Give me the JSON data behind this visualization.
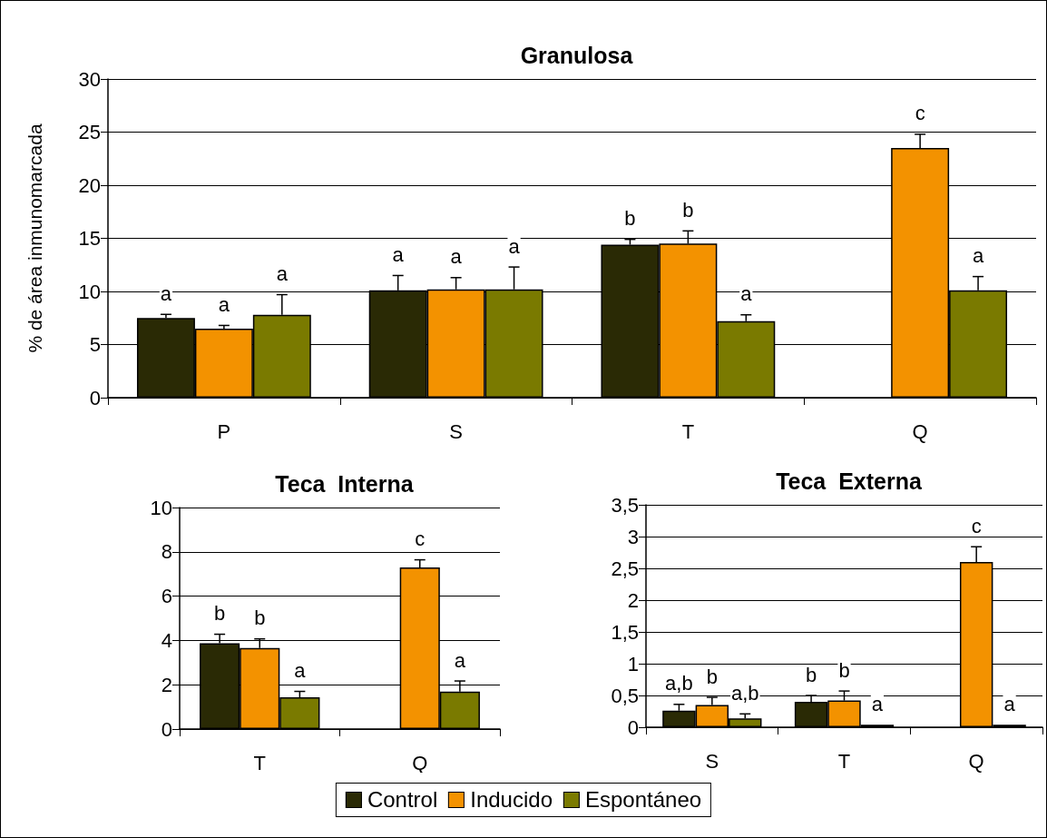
{
  "chart_data": [
    {
      "type": "bar",
      "title": "Granulosa",
      "ylabel": "% de área inmunomarcada",
      "categories": [
        "P",
        "S",
        "T",
        "Q"
      ],
      "ylim": [
        0,
        30
      ],
      "yticks": [
        0,
        5,
        10,
        15,
        20,
        25,
        30
      ],
      "grid": "y",
      "legend": "bottom",
      "series": [
        {
          "name": "Control",
          "color": "#2a2a05",
          "values": [
            7.5,
            10.1,
            14.4,
            null
          ],
          "errors": [
            [
              7.5,
              7.84
            ],
            [
              10.1,
              11.5
            ],
            [
              14.4,
              14.9
            ],
            null
          ],
          "value_labels": [
            "a",
            "a",
            "b",
            null
          ]
        },
        {
          "name": "Inducido",
          "color": "#f39200",
          "values": [
            6.5,
            10.2,
            14.5,
            23.5
          ],
          "errors": [
            [
              6.5,
              6.8
            ],
            [
              10.2,
              11.3
            ],
            [
              14.5,
              15.7
            ],
            [
              23.5,
              24.8
            ]
          ],
          "value_labels": [
            "a",
            "a",
            "b",
            "c"
          ]
        },
        {
          "name": "Espontáneo",
          "color": "#7a7a00",
          "values": [
            7.8,
            10.2,
            7.2,
            10.1
          ],
          "errors": [
            [
              7.8,
              9.7
            ],
            [
              10.2,
              12.3
            ],
            [
              7.2,
              7.8
            ],
            [
              10.1,
              11.4
            ]
          ],
          "value_labels": [
            "a",
            "a",
            "a",
            "a"
          ]
        }
      ]
    },
    {
      "type": "bar",
      "title": "Teca  Interna",
      "categories": [
        "T",
        "Q"
      ],
      "ylim": [
        0,
        10
      ],
      "yticks": [
        0,
        2,
        4,
        6,
        8,
        10
      ],
      "grid": "y",
      "series": [
        {
          "name": "Control",
          "color": "#2a2a05",
          "values": [
            3.87,
            null
          ],
          "errors": [
            [
              3.87,
              4.28
            ],
            null
          ],
          "value_labels": [
            "b",
            null
          ]
        },
        {
          "name": "Inducido",
          "color": "#f39200",
          "values": [
            3.66,
            7.3
          ],
          "errors": [
            [
              3.66,
              4.07
            ],
            [
              7.3,
              7.64
            ]
          ],
          "value_labels": [
            "b",
            "c"
          ]
        },
        {
          "name": "Espontáneo",
          "color": "#7a7a00",
          "values": [
            1.43,
            1.69
          ],
          "errors": [
            [
              1.43,
              1.7
            ],
            [
              1.69,
              2.17
            ]
          ],
          "value_labels": [
            "a",
            "a"
          ]
        }
      ]
    },
    {
      "type": "bar",
      "title": "Teca  Externa",
      "categories": [
        "S",
        "T",
        "Q"
      ],
      "ylim": [
        0,
        3.5
      ],
      "yticks": [
        0,
        {
          "value": 0.5,
          "label": "0,5"
        },
        1,
        {
          "value": 1.5,
          "label": "1,5"
        },
        2,
        {
          "value": 2.5,
          "label": "2,5"
        },
        3,
        {
          "value": 3.5,
          "label": "3,5"
        }
      ],
      "grid": "y",
      "series": [
        {
          "name": "Control",
          "color": "#2a2a05",
          "values": [
            0.26,
            0.4,
            null
          ],
          "errors": [
            [
              0.26,
              0.36
            ],
            [
              0.4,
              0.5
            ],
            null
          ],
          "value_labels": [
            "a,b",
            "b",
            null
          ]
        },
        {
          "name": "Inducido",
          "color": "#f39200",
          "values": [
            0.35,
            0.42,
            2.6
          ],
          "errors": [
            [
              0.35,
              0.47
            ],
            [
              0.42,
              0.57
            ],
            [
              2.6,
              2.84
            ]
          ],
          "value_labels": [
            "b",
            "b",
            "c"
          ]
        },
        {
          "name": "Espontáneo",
          "color": "#7a7a00",
          "values": [
            0.14,
            0.04,
            0.04
          ],
          "errors": [
            [
              0.14,
              0.21
            ],
            null,
            null
          ],
          "value_labels": [
            "a,b",
            "a",
            "a"
          ]
        }
      ]
    }
  ]
}
